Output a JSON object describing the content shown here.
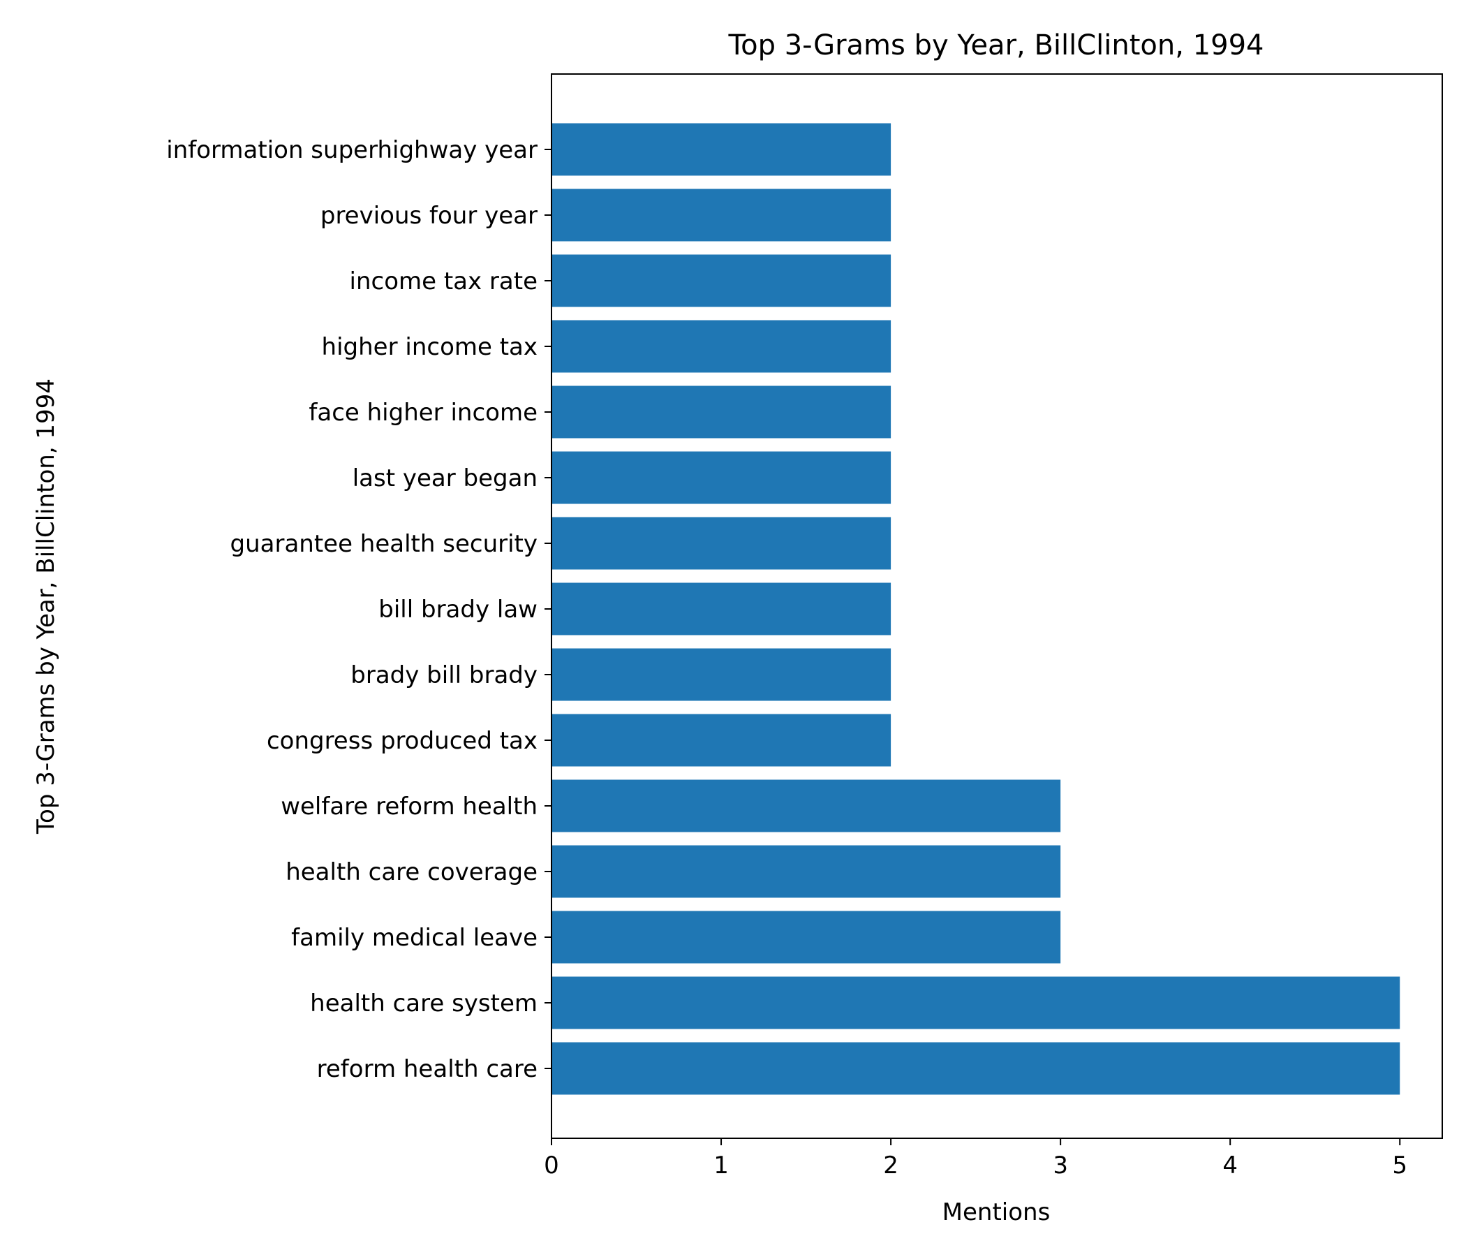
{
  "chart_data": {
    "type": "bar",
    "orientation": "horizontal",
    "title": "Top 3-Grams by Year, BillClinton, 1994",
    "xlabel": "Mentions",
    "ylabel": "Top 3-Grams by Year, BillClinton, 1994",
    "xlim": [
      0,
      5.25
    ],
    "x_ticks": [
      0,
      1,
      2,
      3,
      4,
      5
    ],
    "grid": false,
    "bar_color": "#1f77b4",
    "categories": [
      "reform health care",
      "health care system",
      "family medical leave",
      "health care coverage",
      "welfare reform health",
      "congress produced tax",
      "brady bill brady",
      "bill brady law",
      "guarantee health security",
      "last year began",
      "face higher income",
      "higher income tax",
      "income tax rate",
      "previous four year",
      "information superhighway year"
    ],
    "values": [
      5,
      5,
      3,
      3,
      3,
      2,
      2,
      2,
      2,
      2,
      2,
      2,
      2,
      2,
      2
    ]
  }
}
